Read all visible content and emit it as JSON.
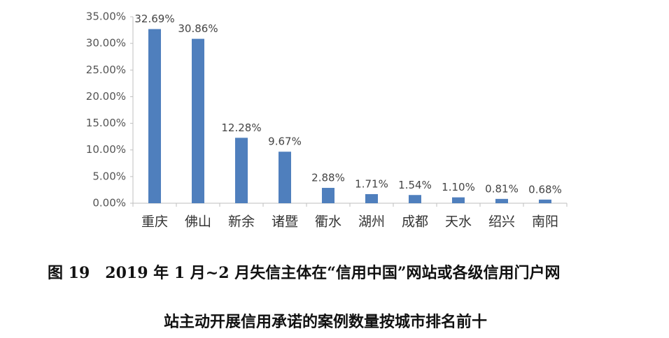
{
  "chart_data": {
    "type": "bar",
    "categories": [
      "重庆",
      "佛山",
      "新余",
      "诸暨",
      "衢水",
      "湖州",
      "成都",
      "天水",
      "绍兴",
      "南阳"
    ],
    "values": [
      32.69,
      30.86,
      12.28,
      9.67,
      2.88,
      1.71,
      1.54,
      1.1,
      0.81,
      0.68
    ],
    "value_labels": [
      "32.69%",
      "30.86%",
      "12.28%",
      "9.67%",
      "2.88%",
      "1.71%",
      "1.54%",
      "1.10%",
      "0.81%",
      "0.68%"
    ],
    "color": "#4f7fbd",
    "ylim": [
      0,
      35
    ],
    "yticks": [
      {
        "value": 0,
        "label": "0.00%"
      },
      {
        "value": 5,
        "label": "5.00%"
      },
      {
        "value": 10,
        "label": "10.00%"
      },
      {
        "value": 15,
        "label": "15.00%"
      },
      {
        "value": 20,
        "label": "20.00%"
      },
      {
        "value": 25,
        "label": "25.00%"
      },
      {
        "value": 30,
        "label": "30.00%"
      },
      {
        "value": 35,
        "label": "35.00%"
      }
    ],
    "grid": false,
    "caption": [
      "图 19　2019 年 1 月~2 月失信主体在“信用中国”网站或各级信用门户网",
      "站主动开展信用承诺的案例数量按城市排名前十"
    ]
  }
}
